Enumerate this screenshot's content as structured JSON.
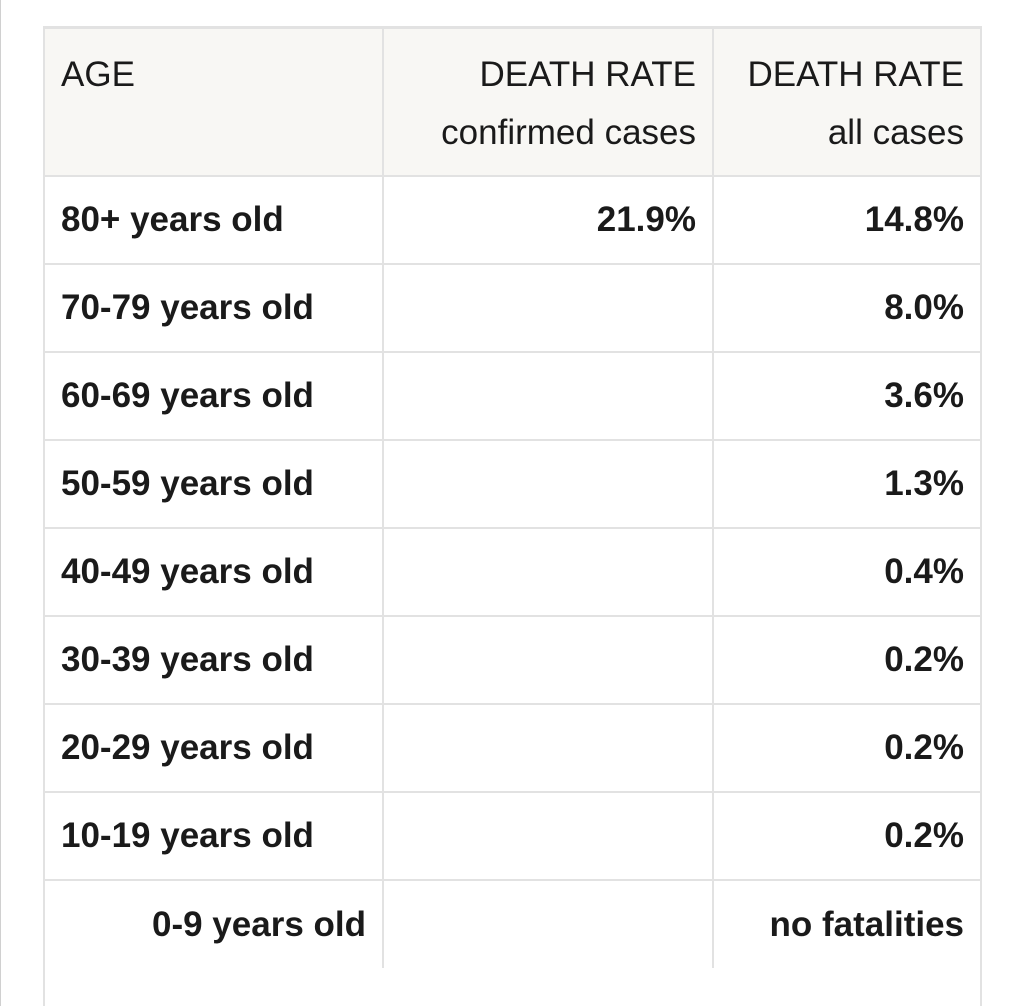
{
  "table": {
    "headers": {
      "age": "AGE",
      "confirmed": [
        "DEATH RATE",
        "confirmed cases"
      ],
      "all": [
        "DEATH RATE",
        "all cases"
      ]
    },
    "rows": [
      {
        "age": "80+ years old",
        "confirmed": "21.9%",
        "all": "14.8%"
      },
      {
        "age": "70-79 years old",
        "confirmed": "",
        "all": "8.0%"
      },
      {
        "age": "60-69 years old",
        "confirmed": "",
        "all": "3.6%"
      },
      {
        "age": "50-59 years old",
        "confirmed": "",
        "all": "1.3%"
      },
      {
        "age": "40-49 years old",
        "confirmed": "",
        "all": "0.4%"
      },
      {
        "age": "30-39 years old",
        "confirmed": "",
        "all": "0.2%"
      },
      {
        "age": "20-29 years old",
        "confirmed": "",
        "all": "0.2%"
      },
      {
        "age": "10-19 years old",
        "confirmed": "",
        "all": "0.2%"
      },
      {
        "age": "0-9 years old",
        "confirmed": "",
        "all": "no fatalities"
      }
    ]
  }
}
